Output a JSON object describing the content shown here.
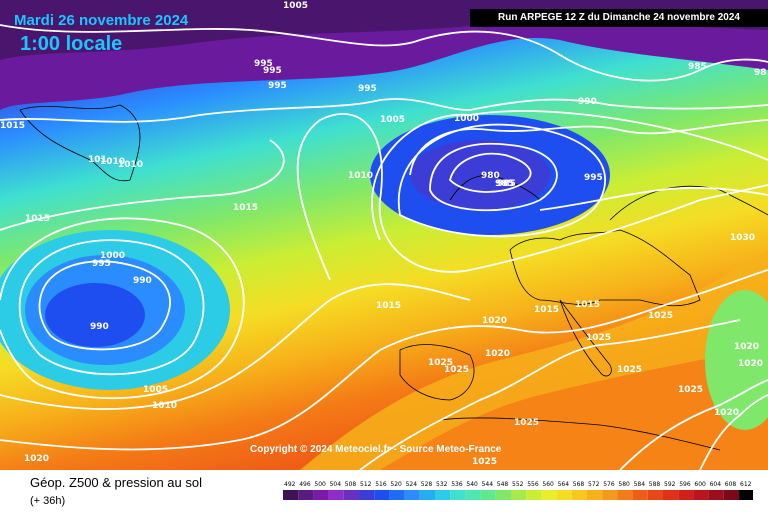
{
  "header": {
    "date": "Mardi 26 novembre 2024",
    "time": "1:00 locale",
    "run": "Run ARPEGE 12 Z du Dimanche 24 novembre 2024"
  },
  "copyright": "Copyright © 2024 Meteociel.fr - Source Meteo-France",
  "footer": {
    "field": "Géop. Z500 & pression au sol",
    "lead": "(+ 36h)"
  },
  "colorbar": {
    "ticks": [
      "492",
      "496",
      "500",
      "504",
      "508",
      "512",
      "516",
      "520",
      "524",
      "528",
      "532",
      "536",
      "540",
      "544",
      "548",
      "552",
      "556",
      "560",
      "564",
      "568",
      "572",
      "576",
      "580",
      "584",
      "588",
      "592",
      "596",
      "600",
      "604",
      "608",
      "612"
    ],
    "colors": [
      "#3d1356",
      "#5a1a7e",
      "#7a1aa6",
      "#8f2bcc",
      "#6a2ec0",
      "#3b3dd6",
      "#1f4ef0",
      "#1e6cf7",
      "#2a8cff",
      "#24aef2",
      "#2ccbe6",
      "#3fe0d0",
      "#4de8b0",
      "#5fe890",
      "#7fe86a",
      "#a6ea4c",
      "#caee34",
      "#e9ee2a",
      "#f5dd24",
      "#f8c81e",
      "#f7b21a",
      "#f59a18",
      "#f47c16",
      "#f05e16",
      "#ea4618",
      "#e23018",
      "#d31f1a",
      "#bb141c",
      "#9b0f1c",
      "#7a0a18",
      "#000000"
    ]
  },
  "isobars": [
    {
      "text": "1005"
    },
    {
      "text": "995"
    },
    {
      "text": "995"
    },
    {
      "text": "995"
    },
    {
      "text": "995"
    },
    {
      "text": "1015"
    },
    {
      "text": "1005"
    },
    {
      "text": "1000"
    },
    {
      "text": "990"
    },
    {
      "text": "985"
    },
    {
      "text": "985"
    },
    {
      "text": "101"
    },
    {
      "text": "1010"
    },
    {
      "text": "1010"
    },
    {
      "text": "1010"
    },
    {
      "text": "980"
    },
    {
      "text": "985"
    },
    {
      "text": "995"
    },
    {
      "text": "1015"
    },
    {
      "text": "1015"
    },
    {
      "text": "1030"
    },
    {
      "text": "1000"
    },
    {
      "text": "995"
    },
    {
      "text": "990"
    },
    {
      "text": "990"
    },
    {
      "text": "1015"
    },
    {
      "text": "1015"
    },
    {
      "text": "1015"
    },
    {
      "text": "1020"
    },
    {
      "text": "1025"
    },
    {
      "text": "1025"
    },
    {
      "text": "1025"
    },
    {
      "text": "1020"
    },
    {
      "text": "1025"
    },
    {
      "text": "1025"
    },
    {
      "text": "1025"
    },
    {
      "text": "1020"
    },
    {
      "text": "1020"
    },
    {
      "text": "1005"
    },
    {
      "text": "1010"
    },
    {
      "text": "1020"
    },
    {
      "text": "1025"
    },
    {
      "text": "1020"
    },
    {
      "text": "1025"
    },
    {
      "text": "98"
    }
  ]
}
